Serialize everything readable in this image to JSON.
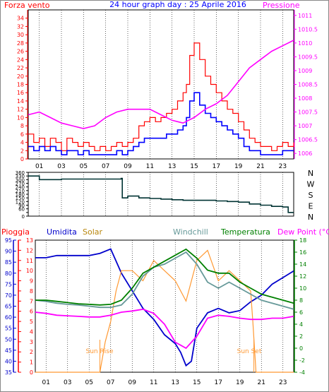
{
  "colors": {
    "wind": "#ff0000",
    "gust_blue": "#0000ff",
    "pressure": "#ff00ff",
    "direction": "#003333",
    "humidity": "#0000cc",
    "solar": "#ff9933",
    "windchill": "#669999",
    "temperature": "#008000",
    "dewpoint": "#ff00ff",
    "rain": "#ff0000",
    "title": "#0000ff"
  },
  "panel1": {
    "title": "24 hour graph day : 25 Aprile 2016",
    "left_label": "Forza vento",
    "right_label": "Pressione"
  },
  "panel3": {
    "label_rain": "Pioggia",
    "label_humidity": "Umidita",
    "label_solar": "Solar",
    "label_windchill": "Windchill",
    "label_temperature": "Temperatura",
    "label_dewpoint": "Dew Point (°C)",
    "sun_rise": "Sun Rise",
    "sun_set": "Sun Set"
  },
  "chart_data": [
    {
      "type": "line",
      "x_label": "hour",
      "x_ticks": [
        "01",
        "03",
        "05",
        "07",
        "09",
        "11",
        "13",
        "15",
        "17",
        "19",
        "21",
        "23"
      ],
      "ylabel": "Forza vento",
      "y2label": "Pressione",
      "ylim": [
        0,
        36
      ],
      "y2lim": [
        1005.8,
        1011.2
      ],
      "y_ticks": [
        0,
        2,
        4,
        6,
        8,
        10,
        12,
        14,
        16,
        18,
        20,
        22,
        24,
        26,
        28,
        30,
        32,
        34
      ],
      "y2_ticks": [
        "1006",
        "1006.5",
        "1007",
        "1007.5",
        "1008",
        "1008.5",
        "1009",
        "1009.5",
        "1010",
        "1010.5",
        "1011"
      ],
      "series": [
        {
          "name": "Forza vento",
          "axis": "left",
          "color": "#ff0000",
          "x": [
            0,
            0.5,
            1,
            1.5,
            2,
            2.5,
            3,
            3.5,
            4,
            4.5,
            5,
            5.5,
            6,
            6.5,
            7,
            7.5,
            8,
            8.5,
            9,
            9.5,
            10,
            10.5,
            11,
            11.5,
            12,
            12.5,
            13,
            13.5,
            14,
            14.3,
            14.6,
            15,
            15.5,
            16,
            16.5,
            17,
            17.5,
            18,
            18.5,
            19,
            19.5,
            20,
            20.5,
            21,
            21.5,
            22,
            22.5,
            23,
            23.5,
            24
          ],
          "y": [
            6,
            4,
            5,
            3,
            5,
            4,
            2,
            5,
            4,
            3,
            4,
            3,
            2,
            3,
            2,
            3,
            4,
            3,
            4,
            5,
            8,
            9,
            10,
            9,
            10,
            11,
            12,
            14,
            16,
            18,
            25,
            28,
            24,
            20,
            18,
            16,
            14,
            12,
            11,
            9,
            7,
            5,
            4,
            3,
            3,
            2,
            3,
            4,
            3,
            4
          ]
        },
        {
          "name": "",
          "axis": "left",
          "color": "#0000ff",
          "x": [
            0,
            0.5,
            1,
            1.5,
            2,
            2.5,
            3,
            3.5,
            4,
            4.5,
            5,
            5.5,
            6,
            6.5,
            7,
            7.5,
            8,
            8.5,
            9,
            9.5,
            10,
            10.5,
            11,
            11.5,
            12,
            12.5,
            13,
            13.5,
            14,
            14.3,
            14.6,
            15,
            15.5,
            16,
            16.5,
            17,
            17.5,
            18,
            18.5,
            19,
            19.5,
            20,
            20.5,
            21,
            21.5,
            22,
            22.5,
            23,
            23.5,
            24
          ],
          "y": [
            3,
            2,
            3,
            2,
            3,
            2,
            1,
            2,
            2,
            1,
            2,
            1,
            1,
            1,
            1,
            1,
            2,
            1,
            2,
            3,
            4,
            5,
            5,
            5,
            5,
            6,
            6,
            7,
            8,
            10,
            14,
            16,
            13,
            11,
            10,
            9,
            8,
            7,
            6,
            5,
            3,
            2,
            2,
            1,
            1,
            1,
            1,
            2,
            2,
            2
          ]
        },
        {
          "name": "Pressione",
          "axis": "right",
          "color": "#ff00ff",
          "x": [
            0,
            1,
            2,
            3,
            4,
            5,
            6,
            7,
            8,
            9,
            10,
            11,
            12,
            13,
            14,
            15,
            16,
            17,
            18,
            19,
            20,
            21,
            22,
            23,
            24
          ],
          "y": [
            1007.4,
            1007.5,
            1007.3,
            1007.1,
            1007.0,
            1006.9,
            1007.0,
            1007.3,
            1007.5,
            1007.6,
            1007.6,
            1007.6,
            1007.4,
            1007.2,
            1007.1,
            1007.3,
            1007.6,
            1007.8,
            1008.1,
            1008.6,
            1009.1,
            1009.4,
            1009.7,
            1009.9,
            1010.1
          ]
        }
      ]
    },
    {
      "type": "line",
      "x_ticks": [
        "01",
        "03",
        "05",
        "07",
        "09",
        "11",
        "13",
        "15",
        "17",
        "19",
        "21",
        "23"
      ],
      "ylim": [
        0,
        360
      ],
      "y_ticks": [
        0,
        30,
        60,
        90,
        120,
        150,
        180,
        210,
        240,
        270,
        300,
        330,
        360
      ],
      "y_tick_labels": [
        "0",
        "",
        "60",
        "90",
        "120",
        "150",
        "180",
        "210",
        "240",
        "270",
        "300",
        "330",
        "360"
      ],
      "direction_labels": [
        "N",
        "W",
        "S",
        "E",
        "N"
      ],
      "series": [
        {
          "name": "",
          "color": "#003333",
          "x": [
            0,
            1,
            2,
            3,
            4,
            5,
            6,
            7,
            8,
            8.4,
            8.5,
            9,
            10,
            11,
            12,
            13,
            14,
            15,
            16,
            17,
            18,
            19,
            20,
            21,
            22,
            23,
            23.5,
            24
          ],
          "y": [
            330,
            300,
            300,
            305,
            305,
            305,
            305,
            305,
            305,
            310,
            150,
            165,
            150,
            145,
            140,
            135,
            130,
            130,
            130,
            125,
            120,
            115,
            100,
            90,
            80,
            75,
            30,
            30
          ]
        }
      ]
    },
    {
      "type": "line",
      "x_ticks": [
        "01",
        "03",
        "05",
        "07",
        "09",
        "11",
        "13",
        "15",
        "17",
        "19",
        "21",
        "23"
      ],
      "ylim": [
        35,
        95
      ],
      "y_ticks": [
        35,
        40,
        45,
        50,
        55,
        60,
        65,
        70,
        75,
        80,
        85,
        90,
        95
      ],
      "rain_ylim": [
        0,
        13
      ],
      "rain_ticks": [
        0,
        1,
        2,
        3,
        4,
        5,
        6,
        7,
        8,
        9,
        10,
        11,
        12,
        13
      ],
      "temp_ylim": [
        -4,
        18
      ],
      "temp_ticks": [
        -4,
        -2,
        0,
        2,
        4,
        6,
        8,
        10,
        12,
        14,
        16,
        18
      ],
      "annotations": [
        "Sun Rise",
        "Sun Set"
      ],
      "series": [
        {
          "name": "Umidita",
          "axis": "humidity",
          "color": "#0000cc",
          "x": [
            0,
            1,
            2,
            3,
            4,
            5,
            6,
            7,
            8,
            9,
            10,
            11,
            12,
            13,
            13.5,
            14,
            14.5,
            15,
            16,
            17,
            18,
            19,
            20,
            21,
            22,
            23,
            24
          ],
          "y": [
            87,
            87,
            88,
            88,
            88,
            88,
            89,
            91,
            80,
            72,
            64,
            59,
            52,
            48,
            44,
            38,
            40,
            55,
            62,
            64,
            62,
            63,
            67,
            70,
            75,
            78,
            81
          ]
        },
        {
          "name": "Solar",
          "axis": "rain",
          "color": "#ff9933",
          "x": [
            0,
            6,
            6.5,
            7,
            7.5,
            8,
            9,
            10,
            11,
            12,
            13,
            14,
            15,
            16,
            17,
            18,
            19,
            20,
            20.2,
            20.5,
            24
          ],
          "y": [
            0,
            0,
            3,
            5,
            8,
            10,
            10,
            9,
            11,
            10,
            9,
            7,
            11,
            12,
            9,
            10,
            9,
            8,
            5,
            0,
            0
          ]
        },
        {
          "name": "Windchill",
          "axis": "temperature",
          "color": "#669999",
          "x": [
            0,
            1,
            2,
            3,
            4,
            5,
            6,
            7,
            8,
            9,
            10,
            11,
            12,
            13,
            14,
            15,
            16,
            17,
            18,
            19,
            20,
            21,
            22,
            23,
            24
          ],
          "y": [
            8,
            7.8,
            7.5,
            7.3,
            7.2,
            7.0,
            6.8,
            6.8,
            7.2,
            9,
            12,
            13.5,
            14,
            15,
            16,
            14,
            11,
            10,
            11,
            10,
            9,
            8,
            7.5,
            7,
            6.5
          ]
        },
        {
          "name": "Temperatura",
          "axis": "temperature",
          "color": "#008000",
          "x": [
            0,
            1,
            2,
            3,
            4,
            5,
            6,
            7,
            8,
            9,
            10,
            11,
            12,
            13,
            14,
            15,
            16,
            17,
            18,
            19,
            20,
            21,
            22,
            23,
            24
          ],
          "y": [
            8,
            8,
            7.8,
            7.6,
            7.4,
            7.3,
            7.2,
            7.3,
            8,
            10,
            12.5,
            13.5,
            14.5,
            15.5,
            16.5,
            15,
            13,
            12.5,
            12.5,
            11,
            10,
            9,
            8.5,
            8,
            7.5
          ]
        },
        {
          "name": "Dew Point (°C)",
          "axis": "temperature",
          "color": "#ff00ff",
          "x": [
            0,
            1,
            2,
            3,
            4,
            5,
            6,
            7,
            8,
            9,
            10,
            11,
            12,
            13,
            14,
            15,
            16,
            17,
            18,
            19,
            20,
            21,
            22,
            23,
            24
          ],
          "y": [
            6,
            5.8,
            5.5,
            5.4,
            5.3,
            5.2,
            5.2,
            5.5,
            6,
            6.2,
            6.5,
            5.8,
            4,
            1,
            0,
            2,
            5,
            5.5,
            5.3,
            5,
            4.8,
            4.8,
            5,
            5,
            5.3
          ]
        }
      ]
    }
  ]
}
